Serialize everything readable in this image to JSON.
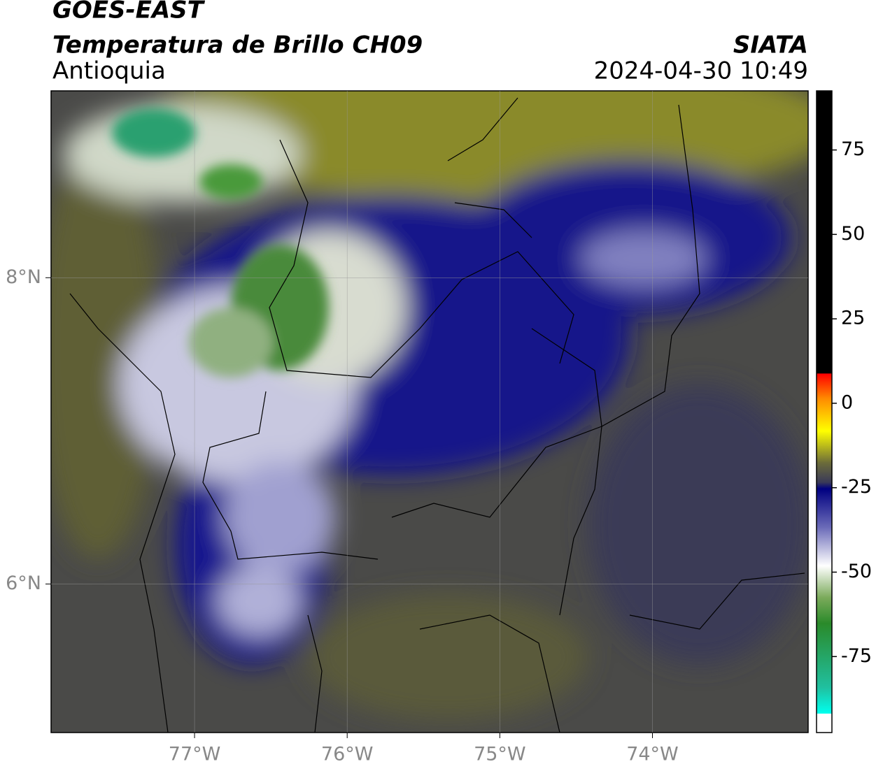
{
  "header": {
    "title": "GOES-EAST",
    "subtitle": "Temperatura de Brillo CH09",
    "region": "Antioquia",
    "source": "SIATA",
    "datetime": "2024-04-30 10:49"
  },
  "map": {
    "lonlim": [
      -77.94,
      -72.98
    ],
    "latlim": [
      5.03,
      9.22
    ],
    "lonticks": [
      {
        "value": -77,
        "label": "77°W"
      },
      {
        "value": -76,
        "label": "76°W"
      },
      {
        "value": -75,
        "label": "75°W"
      },
      {
        "value": -74,
        "label": "74°W"
      }
    ],
    "latticks": [
      {
        "value": 8,
        "label": "8°N"
      },
      {
        "value": 6,
        "label": "6°N"
      }
    ]
  },
  "colorbar": {
    "lim": [
      -97.5,
      92.5
    ],
    "ticks": [
      75,
      50,
      25,
      0,
      -25,
      -50,
      -75
    ]
  }
}
